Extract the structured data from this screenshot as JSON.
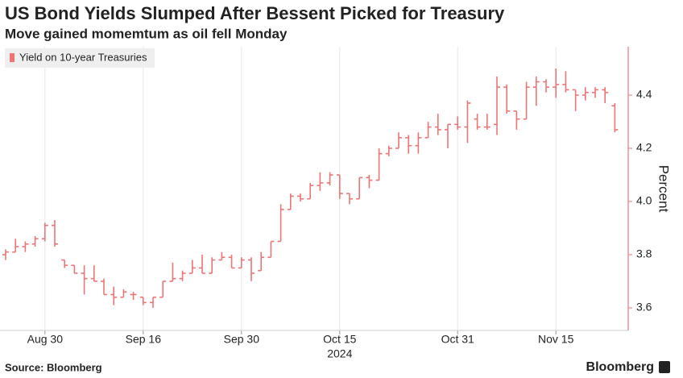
{
  "chart_data": {
    "type": "ohlc",
    "title": "US Bond Yields Slumped After Bessent Picked for Treasury",
    "subtitle": "Move gained momemtum as oil fell Monday",
    "y_label": "Percent",
    "year_label": "2024",
    "source": "Source: Bloomberg",
    "brand": "Bloomberg",
    "categories": [
      null,
      null,
      null,
      null,
      "Aug 30",
      null,
      null,
      null,
      null,
      null,
      null,
      null,
      null,
      null,
      "Sep 16",
      null,
      null,
      null,
      null,
      null,
      null,
      null,
      null,
      null,
      "Sep 30",
      null,
      null,
      null,
      null,
      null,
      null,
      null,
      null,
      null,
      "Oct 15",
      null,
      null,
      null,
      null,
      null,
      null,
      null,
      null,
      null,
      null,
      null,
      "Oct 31",
      null,
      null,
      null,
      null,
      null,
      null,
      null,
      null,
      null,
      "Nov 15",
      null,
      null,
      null,
      null,
      null,
      null
    ],
    "series": [
      {
        "name": "Yield on 10-year Treasuries",
        "color": "#ef7575",
        "open": [
          3.8,
          3.81,
          3.83,
          3.84,
          3.86,
          3.91,
          3.78,
          3.76,
          3.73,
          3.71,
          3.7,
          3.65,
          3.64,
          3.65,
          3.64,
          3.62,
          3.64,
          3.7,
          3.71,
          3.73,
          3.75,
          3.73,
          3.78,
          3.79,
          3.75,
          3.78,
          3.74,
          3.79,
          3.85,
          3.97,
          4.02,
          4.01,
          4.06,
          4.07,
          4.1,
          4.03,
          4.01,
          4.09,
          4.08,
          4.18,
          4.2,
          4.24,
          4.21,
          4.24,
          4.28,
          4.27,
          4.29,
          4.28,
          4.31,
          4.28,
          4.29,
          4.43,
          4.34,
          4.31,
          4.43,
          4.45,
          4.43,
          4.44,
          4.42,
          4.4,
          4.41,
          4.42,
          4.36
        ],
        "high": [
          3.82,
          3.86,
          3.85,
          3.87,
          3.92,
          3.93,
          3.78,
          3.76,
          3.76,
          3.76,
          3.71,
          3.68,
          3.67,
          3.66,
          3.64,
          3.64,
          3.7,
          3.77,
          3.74,
          3.78,
          3.8,
          3.79,
          3.81,
          3.8,
          3.79,
          3.79,
          3.81,
          3.85,
          3.99,
          4.03,
          4.03,
          4.07,
          4.11,
          4.11,
          4.1,
          4.03,
          4.09,
          4.1,
          4.2,
          4.21,
          4.26,
          4.25,
          4.26,
          4.3,
          4.33,
          4.29,
          4.32,
          4.38,
          4.33,
          4.33,
          4.47,
          4.44,
          4.34,
          4.45,
          4.47,
          4.46,
          4.5,
          4.49,
          4.42,
          4.43,
          4.43,
          4.43,
          4.37
        ],
        "low": [
          3.78,
          3.81,
          3.81,
          3.83,
          3.85,
          3.83,
          3.75,
          3.73,
          3.65,
          3.7,
          3.65,
          3.61,
          3.64,
          3.63,
          3.61,
          3.6,
          3.64,
          3.7,
          3.7,
          3.73,
          3.73,
          3.73,
          3.78,
          3.75,
          3.75,
          3.7,
          3.74,
          3.79,
          3.85,
          3.97,
          4.0,
          4.01,
          4.04,
          4.06,
          4.01,
          3.99,
          4.01,
          4.05,
          4.08,
          4.17,
          4.2,
          4.18,
          4.18,
          4.24,
          4.25,
          4.2,
          4.27,
          4.22,
          4.27,
          4.27,
          4.25,
          4.33,
          4.27,
          4.31,
          4.36,
          4.41,
          4.39,
          4.41,
          4.34,
          4.38,
          4.39,
          4.37,
          4.26
        ],
        "close": [
          3.81,
          3.83,
          3.84,
          3.86,
          3.91,
          3.84,
          3.76,
          3.73,
          3.71,
          3.7,
          3.65,
          3.64,
          3.66,
          3.65,
          3.62,
          3.64,
          3.7,
          3.71,
          3.73,
          3.75,
          3.73,
          3.78,
          3.79,
          3.75,
          3.78,
          3.73,
          3.79,
          3.85,
          3.97,
          4.02,
          4.01,
          4.06,
          4.07,
          4.1,
          4.03,
          4.01,
          4.09,
          4.08,
          4.18,
          4.2,
          4.24,
          4.21,
          4.24,
          4.28,
          4.27,
          4.29,
          4.28,
          4.37,
          4.28,
          4.28,
          4.43,
          4.34,
          4.31,
          4.43,
          4.45,
          4.43,
          4.44,
          4.42,
          4.4,
          4.41,
          4.42,
          4.41,
          4.27
        ]
      }
    ],
    "ylim": [
      3.515,
      4.582
    ],
    "yticks": [
      3.6,
      3.8,
      {
        "value": 4,
        "label": "4.0"
      },
      4.2,
      4.4
    ],
    "grid": "x",
    "legend": "top-left"
  }
}
